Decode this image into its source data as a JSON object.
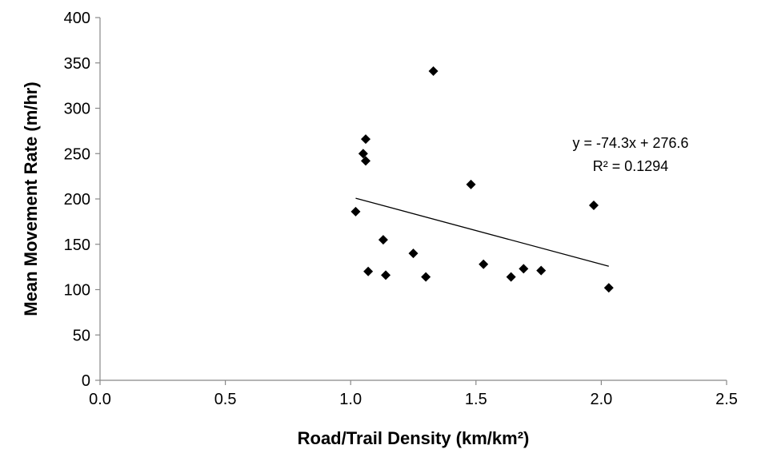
{
  "chart_data": {
    "type": "scatter",
    "title": "",
    "xlabel": "Road/Trail Density (km/km²)",
    "ylabel": "Mean Movement Rate (m/hr)",
    "xlim": [
      0,
      2.5
    ],
    "ylim": [
      0,
      400
    ],
    "x_ticks": [
      "0.0",
      "0.5",
      "1.0",
      "1.5",
      "2.0",
      "2.5"
    ],
    "y_ticks": [
      "0",
      "50",
      "100",
      "150",
      "200",
      "250",
      "300",
      "350",
      "400"
    ],
    "grid": false,
    "legend": "none",
    "marker": "diamond",
    "marker_color": "#000000",
    "series": [
      {
        "points": [
          [
            1.02,
            186
          ],
          [
            1.05,
            250
          ],
          [
            1.06,
            266
          ],
          [
            1.06,
            242
          ],
          [
            1.07,
            120
          ],
          [
            1.13,
            155
          ],
          [
            1.14,
            116
          ],
          [
            1.25,
            140
          ],
          [
            1.3,
            114
          ],
          [
            1.33,
            341
          ],
          [
            1.48,
            216
          ],
          [
            1.53,
            128
          ],
          [
            1.64,
            114
          ],
          [
            1.69,
            123
          ],
          [
            1.76,
            121
          ],
          [
            1.97,
            193
          ],
          [
            2.03,
            102
          ]
        ]
      }
    ],
    "trendline": {
      "slope": -74.3,
      "intercept": 276.6,
      "x_range": [
        1.02,
        2.03
      ],
      "equation_label": "y = -74.3x + 276.6",
      "r2_label": "R² = 0.1294"
    }
  }
}
